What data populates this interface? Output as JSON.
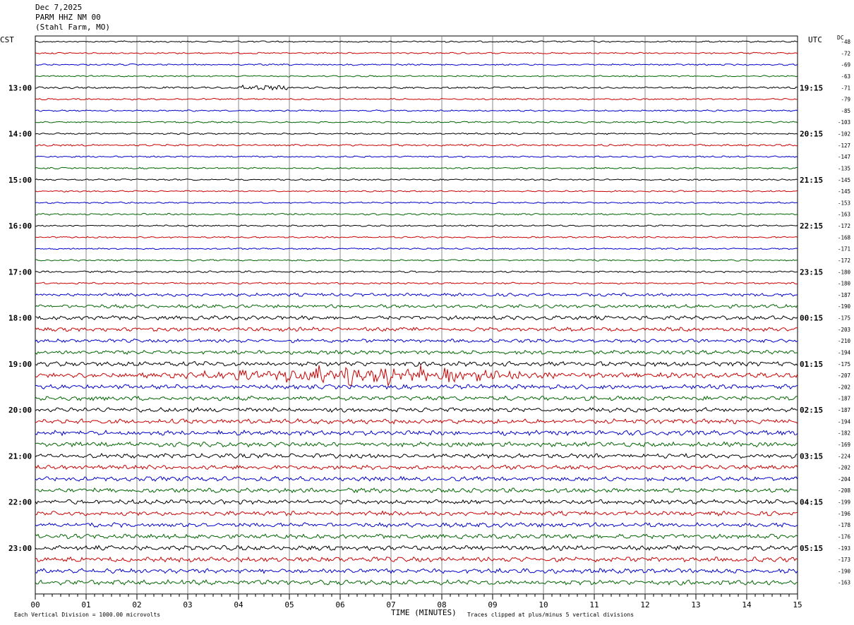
{
  "header": {
    "date": "Dec 7,2025",
    "station": "PARM HHZ NM 00",
    "location": "(Stahl Farm, MO)"
  },
  "left_zone_label": "CST",
  "right_zone_label": "UTC",
  "dc_label": "DC",
  "chart_data": {
    "type": "line",
    "xlabel": "TIME (MINUTES)",
    "xlim": [
      0,
      15
    ],
    "x_ticks": [
      "00",
      "01",
      "02",
      "03",
      "04",
      "05",
      "06",
      "07",
      "08",
      "09",
      "10",
      "11",
      "12",
      "13",
      "14",
      "15"
    ],
    "left_hour_labels": [
      "13:00",
      "14:00",
      "15:00",
      "16:00",
      "17:00",
      "18:00",
      "19:00",
      "20:00",
      "21:00",
      "22:00",
      "23:00"
    ],
    "right_hour_labels": [
      "19:15",
      "20:15",
      "21:15",
      "22:15",
      "23:15",
      "00:15",
      "01:15",
      "02:15",
      "03:15",
      "04:15",
      "05:15"
    ],
    "trace_colors": [
      "#000000",
      "#cc0000",
      "#0000cc",
      "#006600"
    ],
    "dc_offsets": [
      -48,
      -72,
      -69,
      -63,
      -71,
      -79,
      -85,
      -103,
      -102,
      -127,
      -147,
      -135,
      -145,
      -145,
      -153,
      -163,
      -172,
      -168,
      -171,
      -172,
      -180,
      -180,
      -187,
      -190,
      -175,
      -203,
      -210,
      -194,
      -175,
      -207,
      -202,
      -187,
      -187,
      -194,
      -182,
      -169,
      -224,
      -202,
      -204,
      -208,
      -199,
      -196,
      -178,
      -176,
      -193,
      -173,
      -190,
      -163
    ],
    "trace_activity": [
      1,
      1,
      1,
      1,
      1.2,
      1,
      1,
      1,
      1,
      1.2,
      1,
      1,
      1,
      1,
      1,
      1.1,
      1,
      1,
      1,
      1,
      1.2,
      1.2,
      2,
      2.2,
      2.5,
      2.5,
      2.2,
      2.5,
      3,
      3.2,
      2.8,
      2.8,
      2.8,
      3,
      3,
      3,
      2.8,
      2.8,
      2.8,
      2.8,
      2.8,
      2.8,
      2.8,
      2.8,
      3,
      3,
      3,
      3
    ]
  },
  "footer": {
    "scale_note": "Each Vertical Division = 1000.00 microvolts",
    "clip_note": "Traces clipped at plus/minus 5 vertical divisions"
  }
}
